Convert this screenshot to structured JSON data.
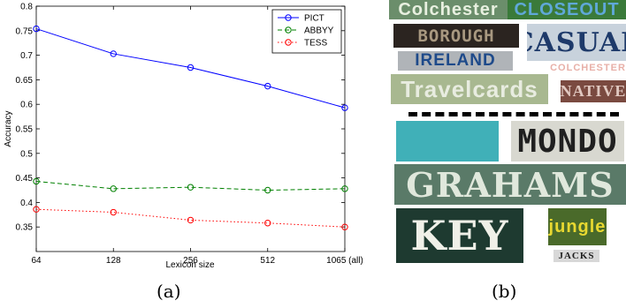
{
  "chart_data": {
    "type": "line",
    "xlabel": "Lexicon size",
    "ylabel": "Accuracy",
    "categories": [
      "64",
      "128",
      "256",
      "512",
      "1065 (all)"
    ],
    "ylim": [
      0.3,
      0.8
    ],
    "yticks": [
      0.35,
      0.4,
      0.45,
      0.5,
      0.55,
      0.6,
      0.65,
      0.7,
      0.75,
      0.8
    ],
    "ytick_labels": [
      "0.35",
      "0.4",
      "0.45",
      "0.5",
      "0.55",
      "0.6",
      "0.65",
      "0.7",
      "0.75",
      "0.8"
    ],
    "grid": false,
    "legend_position": "top-right",
    "series": [
      {
        "name": "PICT",
        "values": [
          0.754,
          0.703,
          0.675,
          0.637,
          0.593
        ],
        "color": "#0000ff",
        "style": "solid"
      },
      {
        "name": "ABBYY",
        "values": [
          0.443,
          0.428,
          0.431,
          0.425,
          0.428
        ],
        "color": "#008000",
        "style": "dashed"
      },
      {
        "name": "TESS",
        "values": [
          0.386,
          0.38,
          0.364,
          0.358,
          0.35
        ],
        "color": "#ff0000",
        "style": "dotted"
      }
    ]
  },
  "captions": {
    "a": "(a)",
    "b": "(b)"
  },
  "samples": {
    "tiles": [
      {
        "text": "Colchester",
        "bg": "#6b8e6b",
        "fg": "#e8f0e0"
      },
      {
        "text": "CLOSEOUT",
        "bg": "#3a7a3a",
        "fg": "#5fa8d8"
      },
      {
        "text": "BOROUGH",
        "bg": "#2b2420",
        "fg": "#a89880"
      },
      {
        "text": "CASUAL",
        "bg": "#c8d2dc",
        "fg": "#1e3a6a"
      },
      {
        "text": "IRELAND",
        "bg": "#b0b4b8",
        "fg": "#1e4a8a"
      },
      {
        "text": "COLCHESTER",
        "bg": "#ffffff",
        "fg": "#e8b0a8"
      },
      {
        "text": "Travelcards",
        "bg": "#a8b890",
        "fg": "#e8ece0"
      },
      {
        "text": "NATIVE",
        "bg": "#7a4a40",
        "fg": "#e0c8c0"
      },
      {
        "text": "",
        "bg": "#40b0b8",
        "fg": "#ffffff"
      },
      {
        "text": "MONDO",
        "bg": "#d8d8d0",
        "fg": "#202020"
      },
      {
        "text": "GRAHAMS",
        "bg": "#5a7a68",
        "fg": "#e0e8dc"
      },
      {
        "text": "KEY",
        "bg": "#1e3a30",
        "fg": "#f0f0e8"
      },
      {
        "text": "jungle",
        "bg": "#4a6a2a",
        "fg": "#e8d830"
      },
      {
        "text": "JACKS",
        "bg": "#d8d8d8",
        "fg": "#202020"
      }
    ]
  }
}
